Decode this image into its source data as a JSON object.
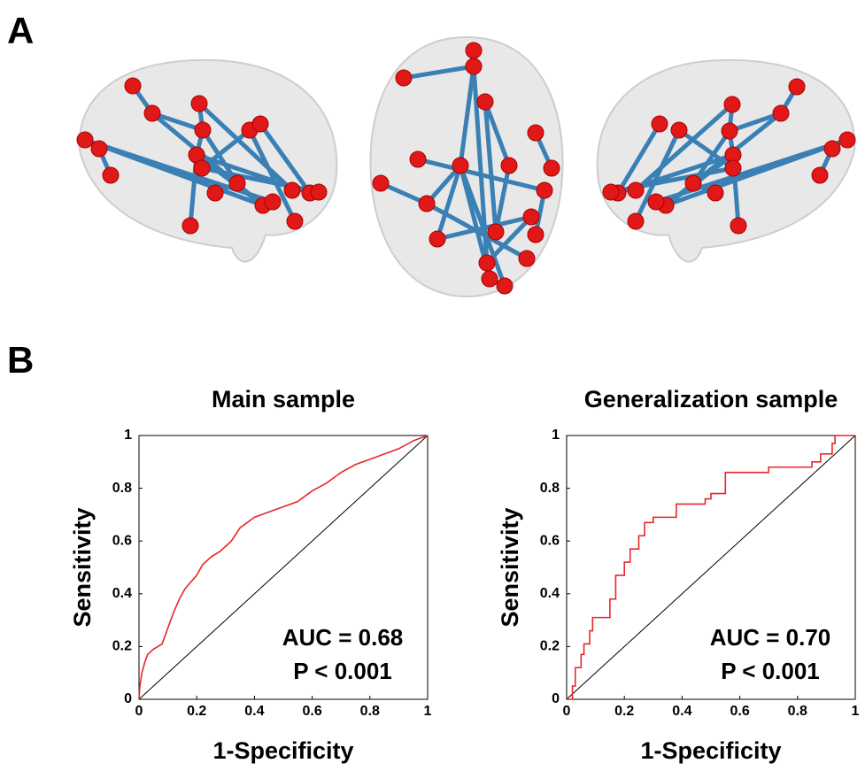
{
  "panels": [
    "A",
    "B"
  ],
  "chart_data": [
    {
      "type": "line",
      "title": "Main sample",
      "x_label": "1-Specificity",
      "y_label": "Sensitivity",
      "annotations": [
        "AUC = 0.68",
        "P < 0.001"
      ],
      "xlim": [
        0,
        1
      ],
      "ylim": [
        0,
        1
      ],
      "xticks": [
        0,
        0.2,
        0.4,
        0.6,
        0.8,
        1
      ],
      "yticks": [
        0,
        0.2,
        0.4,
        0.6,
        0.8,
        1
      ],
      "series": [
        {
          "color": "#e8262a",
          "x": [
            0,
            0.003,
            0.01,
            0.02,
            0.03,
            0.05,
            0.08,
            0.1,
            0.12,
            0.14,
            0.16,
            0.2,
            0.22,
            0.25,
            0.28,
            0.32,
            0.35,
            0.4,
            0.45,
            0.5,
            0.55,
            0.6,
            0.65,
            0.7,
            0.75,
            0.8,
            0.85,
            0.9,
            0.95,
            1
          ],
          "values": [
            0,
            0.05,
            0.1,
            0.14,
            0.17,
            0.19,
            0.21,
            0.27,
            0.33,
            0.38,
            0.42,
            0.47,
            0.51,
            0.54,
            0.56,
            0.6,
            0.65,
            0.69,
            0.71,
            0.73,
            0.75,
            0.79,
            0.82,
            0.86,
            0.89,
            0.91,
            0.93,
            0.95,
            0.98,
            1
          ]
        }
      ]
    },
    {
      "type": "line",
      "title": "Generalization sample",
      "x_label": "1-Specificity",
      "y_label": "Sensitivity",
      "annotations": [
        "AUC = 0.70",
        "P < 0.001"
      ],
      "xlim": [
        0,
        1
      ],
      "ylim": [
        0,
        1
      ],
      "xticks": [
        0,
        0.2,
        0.4,
        0.6,
        0.8,
        1
      ],
      "yticks": [
        0,
        0.2,
        0.4,
        0.6,
        0.8,
        1
      ],
      "series": [
        {
          "color": "#e8262a",
          "x": [
            0,
            0.02,
            0.02,
            0.03,
            0.03,
            0.05,
            0.05,
            0.06,
            0.06,
            0.08,
            0.08,
            0.09,
            0.09,
            0.15,
            0.15,
            0.17,
            0.17,
            0.2,
            0.2,
            0.22,
            0.22,
            0.25,
            0.25,
            0.27,
            0.27,
            0.3,
            0.3,
            0.38,
            0.38,
            0.48,
            0.48,
            0.5,
            0.5,
            0.55,
            0.55,
            0.67,
            0.67,
            0.7,
            0.7,
            0.85,
            0.85,
            0.88,
            0.88,
            0.92,
            0.92,
            0.93,
            0.93,
            1
          ],
          "values": [
            0,
            0,
            0.05,
            0.05,
            0.12,
            0.12,
            0.17,
            0.17,
            0.21,
            0.21,
            0.26,
            0.26,
            0.31,
            0.31,
            0.38,
            0.38,
            0.47,
            0.47,
            0.52,
            0.52,
            0.57,
            0.57,
            0.62,
            0.62,
            0.67,
            0.67,
            0.69,
            0.69,
            0.74,
            0.74,
            0.76,
            0.76,
            0.78,
            0.78,
            0.86,
            0.86,
            0.86,
            0.86,
            0.88,
            0.88,
            0.9,
            0.9,
            0.93,
            0.93,
            0.97,
            0.97,
            1,
            1
          ]
        }
      ]
    }
  ]
}
